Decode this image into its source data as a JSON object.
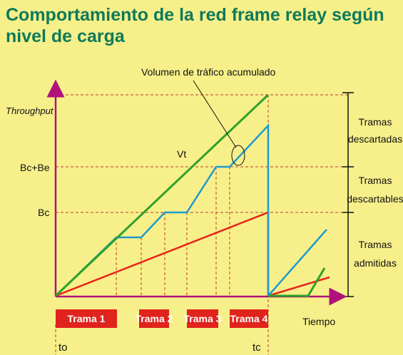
{
  "title": {
    "line1": "Comportamiento de la red frame relay según",
    "line2": "nivel de carga"
  },
  "colors": {
    "background": "#f7f08a",
    "title": "#0e7a5a",
    "axis": "#b0127a",
    "cumulative_line": "#2fa02a",
    "throughput_line": "#1e9ad0",
    "red_line": "#e8241c",
    "dashed": "#c0392b",
    "trama_box": "#e0231c"
  },
  "labels": {
    "y_axis": "Throughput",
    "x_axis": "Tiempo",
    "bc_be": "Bc+Be",
    "bc": "Bc",
    "vt": "Vt",
    "callout": "Volumen de tráfico acumulado",
    "to": "to",
    "tc": "tc"
  },
  "zones": [
    {
      "line1": "Tramas",
      "line2": "descartadas"
    },
    {
      "line1": "Tramas",
      "line2": "descartables"
    },
    {
      "line1": "Tramas",
      "line2": "admitidas"
    }
  ],
  "tramas": [
    "Trama 1",
    "Trama 2",
    "Trama 3",
    "Trama 4"
  ]
}
